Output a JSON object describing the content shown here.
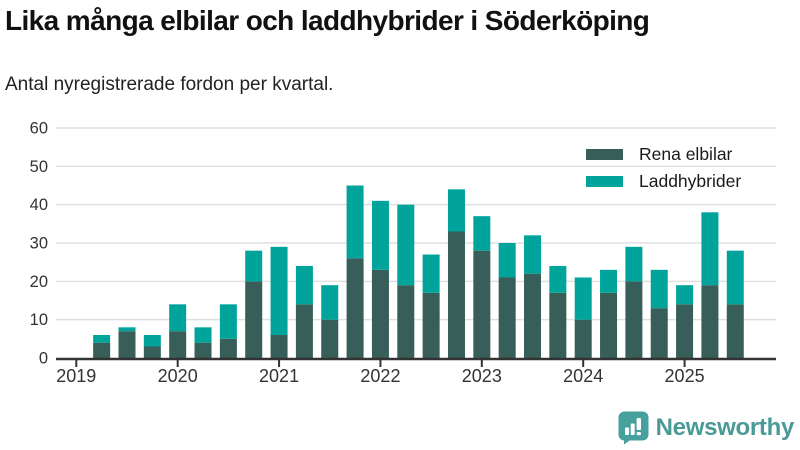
{
  "header": {
    "title": "Lika många elbilar och laddhybrider i Söderköping",
    "subtitle": "Antal nyregistrerade fordon per kvartal."
  },
  "chart_data": {
    "type": "bar",
    "stacked": true,
    "title": "Lika många elbilar och laddhybrider i Söderköping",
    "subtitle": "Antal nyregistrerade fordon per kvartal.",
    "categories": [
      "2019-Q1",
      "2019-Q2",
      "2019-Q3",
      "2019-Q4",
      "2020-Q1",
      "2020-Q2",
      "2020-Q3",
      "2020-Q4",
      "2021-Q1",
      "2021-Q2",
      "2021-Q3",
      "2021-Q4",
      "2022-Q1",
      "2022-Q2",
      "2022-Q3",
      "2022-Q4",
      "2023-Q1",
      "2023-Q2",
      "2023-Q3",
      "2023-Q4",
      "2024-Q1",
      "2024-Q2",
      "2024-Q3",
      "2024-Q4",
      "2025-Q1",
      "2025-Q2",
      "2025-Q3"
    ],
    "series": [
      {
        "name": "Rena elbilar",
        "color": "#375e58",
        "values": [
          0,
          4,
          7,
          3,
          7,
          4,
          5,
          20,
          6,
          14,
          10,
          26,
          23,
          19,
          17,
          33,
          28,
          21,
          22,
          17,
          10,
          17,
          20,
          13,
          14,
          19,
          14
        ]
      },
      {
        "name": "Laddhybrider",
        "color": "#00a49b",
        "values": [
          0,
          2,
          1,
          3,
          7,
          4,
          9,
          8,
          23,
          10,
          9,
          19,
          18,
          21,
          10,
          11,
          9,
          9,
          10,
          7,
          11,
          6,
          9,
          10,
          5,
          19,
          14
        ]
      }
    ],
    "totals": [
      0,
      6,
      8,
      6,
      14,
      8,
      14,
      28,
      29,
      24,
      19,
      45,
      41,
      40,
      27,
      44,
      37,
      30,
      32,
      24,
      21,
      23,
      29,
      23,
      19,
      38,
      28
    ],
    "ylim": [
      0,
      60
    ],
    "yticks": [
      0,
      10,
      20,
      30,
      40,
      50,
      60
    ],
    "xticks": [
      "2019",
      "2020",
      "2021",
      "2022",
      "2023",
      "2024",
      "2025"
    ],
    "grid": true,
    "legend_position": "top-right"
  },
  "legend": {
    "items": [
      {
        "label": "Rena elbilar",
        "color": "#375e58"
      },
      {
        "label": "Laddhybrider",
        "color": "#00a49b"
      }
    ]
  },
  "footer": {
    "brand": "Newsworthy"
  },
  "colors": {
    "series_dark": "#375e58",
    "series_teal": "#00a49b",
    "gridline": "#e0e0e0",
    "axis": "#333333",
    "tick_text": "#333333",
    "title_text": "#111111",
    "logo_icon": "#46a09c",
    "logo_text": "#4a9a97",
    "background": "#ffffff"
  }
}
